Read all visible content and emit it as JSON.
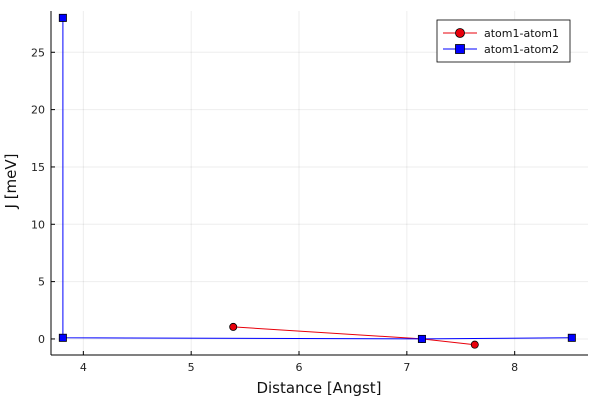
{
  "chart_data": {
    "type": "line",
    "xlabel": "Distance [Angst]",
    "ylabel": "J [meV]",
    "xlim": [
      3.7,
      8.68
    ],
    "ylim": [
      -1.4,
      28.6
    ],
    "xticks": [
      4,
      5,
      6,
      7,
      8
    ],
    "yticks": [
      0,
      5,
      10,
      15,
      20,
      25
    ],
    "grid": true,
    "legend_position": "top-right",
    "series": [
      {
        "name": "atom1-atom1",
        "color": "#e8000b",
        "marker": "circle",
        "x": [
          5.39,
          7.14,
          7.63
        ],
        "y": [
          1.05,
          0.0,
          -0.5
        ]
      },
      {
        "name": "atom1-atom2",
        "color": "#0000ff",
        "marker": "square",
        "x": [
          3.81,
          3.81,
          7.14,
          8.53
        ],
        "y": [
          28.0,
          0.1,
          0.0,
          0.1
        ]
      }
    ]
  }
}
